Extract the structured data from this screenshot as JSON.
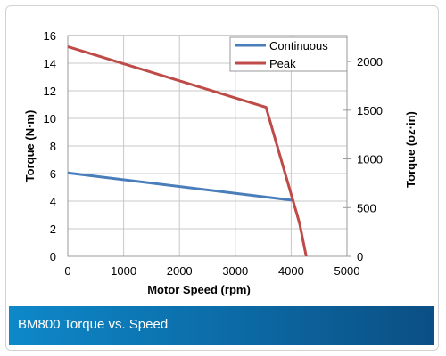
{
  "footer": {
    "title": "BM800 Torque vs. Speed"
  },
  "chart_data": {
    "type": "line",
    "xlabel": "Motor Speed (rpm)",
    "ylabel": "Torque (N·m)",
    "y2label": "Torque (oz·in)",
    "xlim": [
      0,
      5000
    ],
    "ylim": [
      0,
      16
    ],
    "y2lim": [
      0,
      2266
    ],
    "x_ticks": [
      0,
      1000,
      2000,
      3000,
      4000,
      5000
    ],
    "y_ticks": [
      0,
      2,
      4,
      6,
      8,
      10,
      12,
      14,
      16
    ],
    "y2_ticks": [
      0,
      500,
      1000,
      1500,
      2000
    ],
    "grid": true,
    "legend_position": "top-right",
    "series": [
      {
        "name": "Continuous",
        "color": "#4a7ebb",
        "x": [
          0,
          4050
        ],
        "y": [
          6.05,
          4.05
        ]
      },
      {
        "name": "Peak",
        "color": "#be4b48",
        "x": [
          0,
          3550,
          3950,
          4150,
          4270
        ],
        "y": [
          15.2,
          10.8,
          5.2,
          2.4,
          0
        ]
      }
    ]
  }
}
